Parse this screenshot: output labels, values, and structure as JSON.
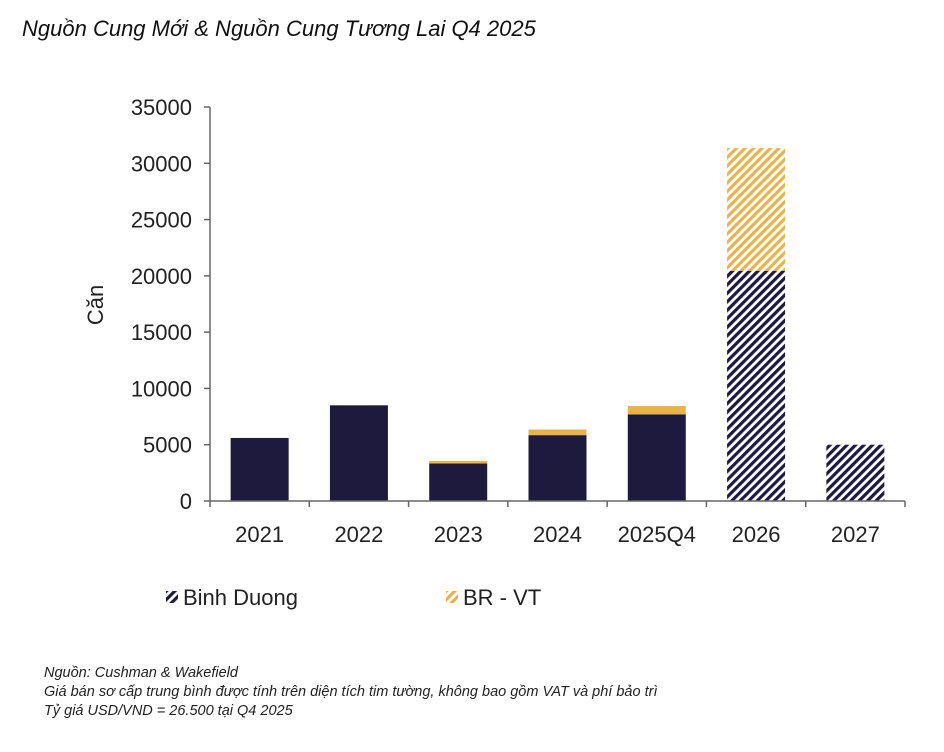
{
  "chart_data": {
    "type": "bar",
    "stacked": true,
    "title": "Nguồn Cung Mới & Nguồn Cung Tương Lai Q4 2025",
    "xlabel": "",
    "ylabel": "Căn",
    "ylim": [
      0,
      35000
    ],
    "yticks": [
      0,
      5000,
      10000,
      15000,
      20000,
      25000,
      30000,
      35000
    ],
    "categories": [
      "2021",
      "2022",
      "2023",
      "2024",
      "2025Q4",
      "2026",
      "2027"
    ],
    "series": [
      {
        "name": "Binh Duong",
        "color": "#1e1a3e",
        "values": [
          5600,
          8500,
          3330,
          5850,
          7700,
          20450,
          5000
        ],
        "hatched_from_index": 5
      },
      {
        "name": "BR - VT",
        "color": "#e8b44a",
        "values": [
          0,
          0,
          230,
          500,
          740,
          10900,
          0
        ],
        "hatched_from_index": 5
      }
    ],
    "legend": "bottom-left",
    "grid": false
  },
  "notes": [
    "Nguồn: Cushman & Wakefield",
    "Giá bán sơ cấp trung bình được tính trên diện tích tim tường, không bao gồm VAT và phí bảo trì",
    "Tỷ giá USD/VND = 26.500 tại Q4 2025"
  ]
}
